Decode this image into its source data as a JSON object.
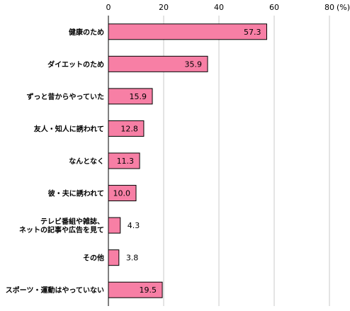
{
  "chart_data": {
    "type": "bar",
    "orientation": "horizontal",
    "categories": [
      [
        "健康のため"
      ],
      [
        "ダイエットのため"
      ],
      [
        "ずっと昔からやっていた"
      ],
      [
        "友人・知人に誘われて"
      ],
      [
        "なんとなく"
      ],
      [
        "彼・夫に誘われて"
      ],
      [
        "テレビ番組や雑誌、",
        "ネットの記事や広告を見て"
      ],
      [
        "その他"
      ],
      [
        "スポーツ・運動はやっていない"
      ]
    ],
    "values": [
      57.3,
      35.9,
      15.9,
      12.8,
      11.3,
      10.0,
      4.3,
      3.8,
      19.5
    ],
    "value_labels": [
      "57.3",
      "35.9",
      "15.9",
      "12.8",
      "11.3",
      "10.0",
      "4.3",
      "3.8",
      "19.5"
    ],
    "xlim": [
      0,
      80
    ],
    "x_ticks": [
      0,
      20,
      40,
      60,
      80
    ],
    "unit": "(%)",
    "grid": true,
    "bar_color": "#f77fa5",
    "bar_edge_color": "#000000",
    "grid_color": "#c8c8c8"
  }
}
